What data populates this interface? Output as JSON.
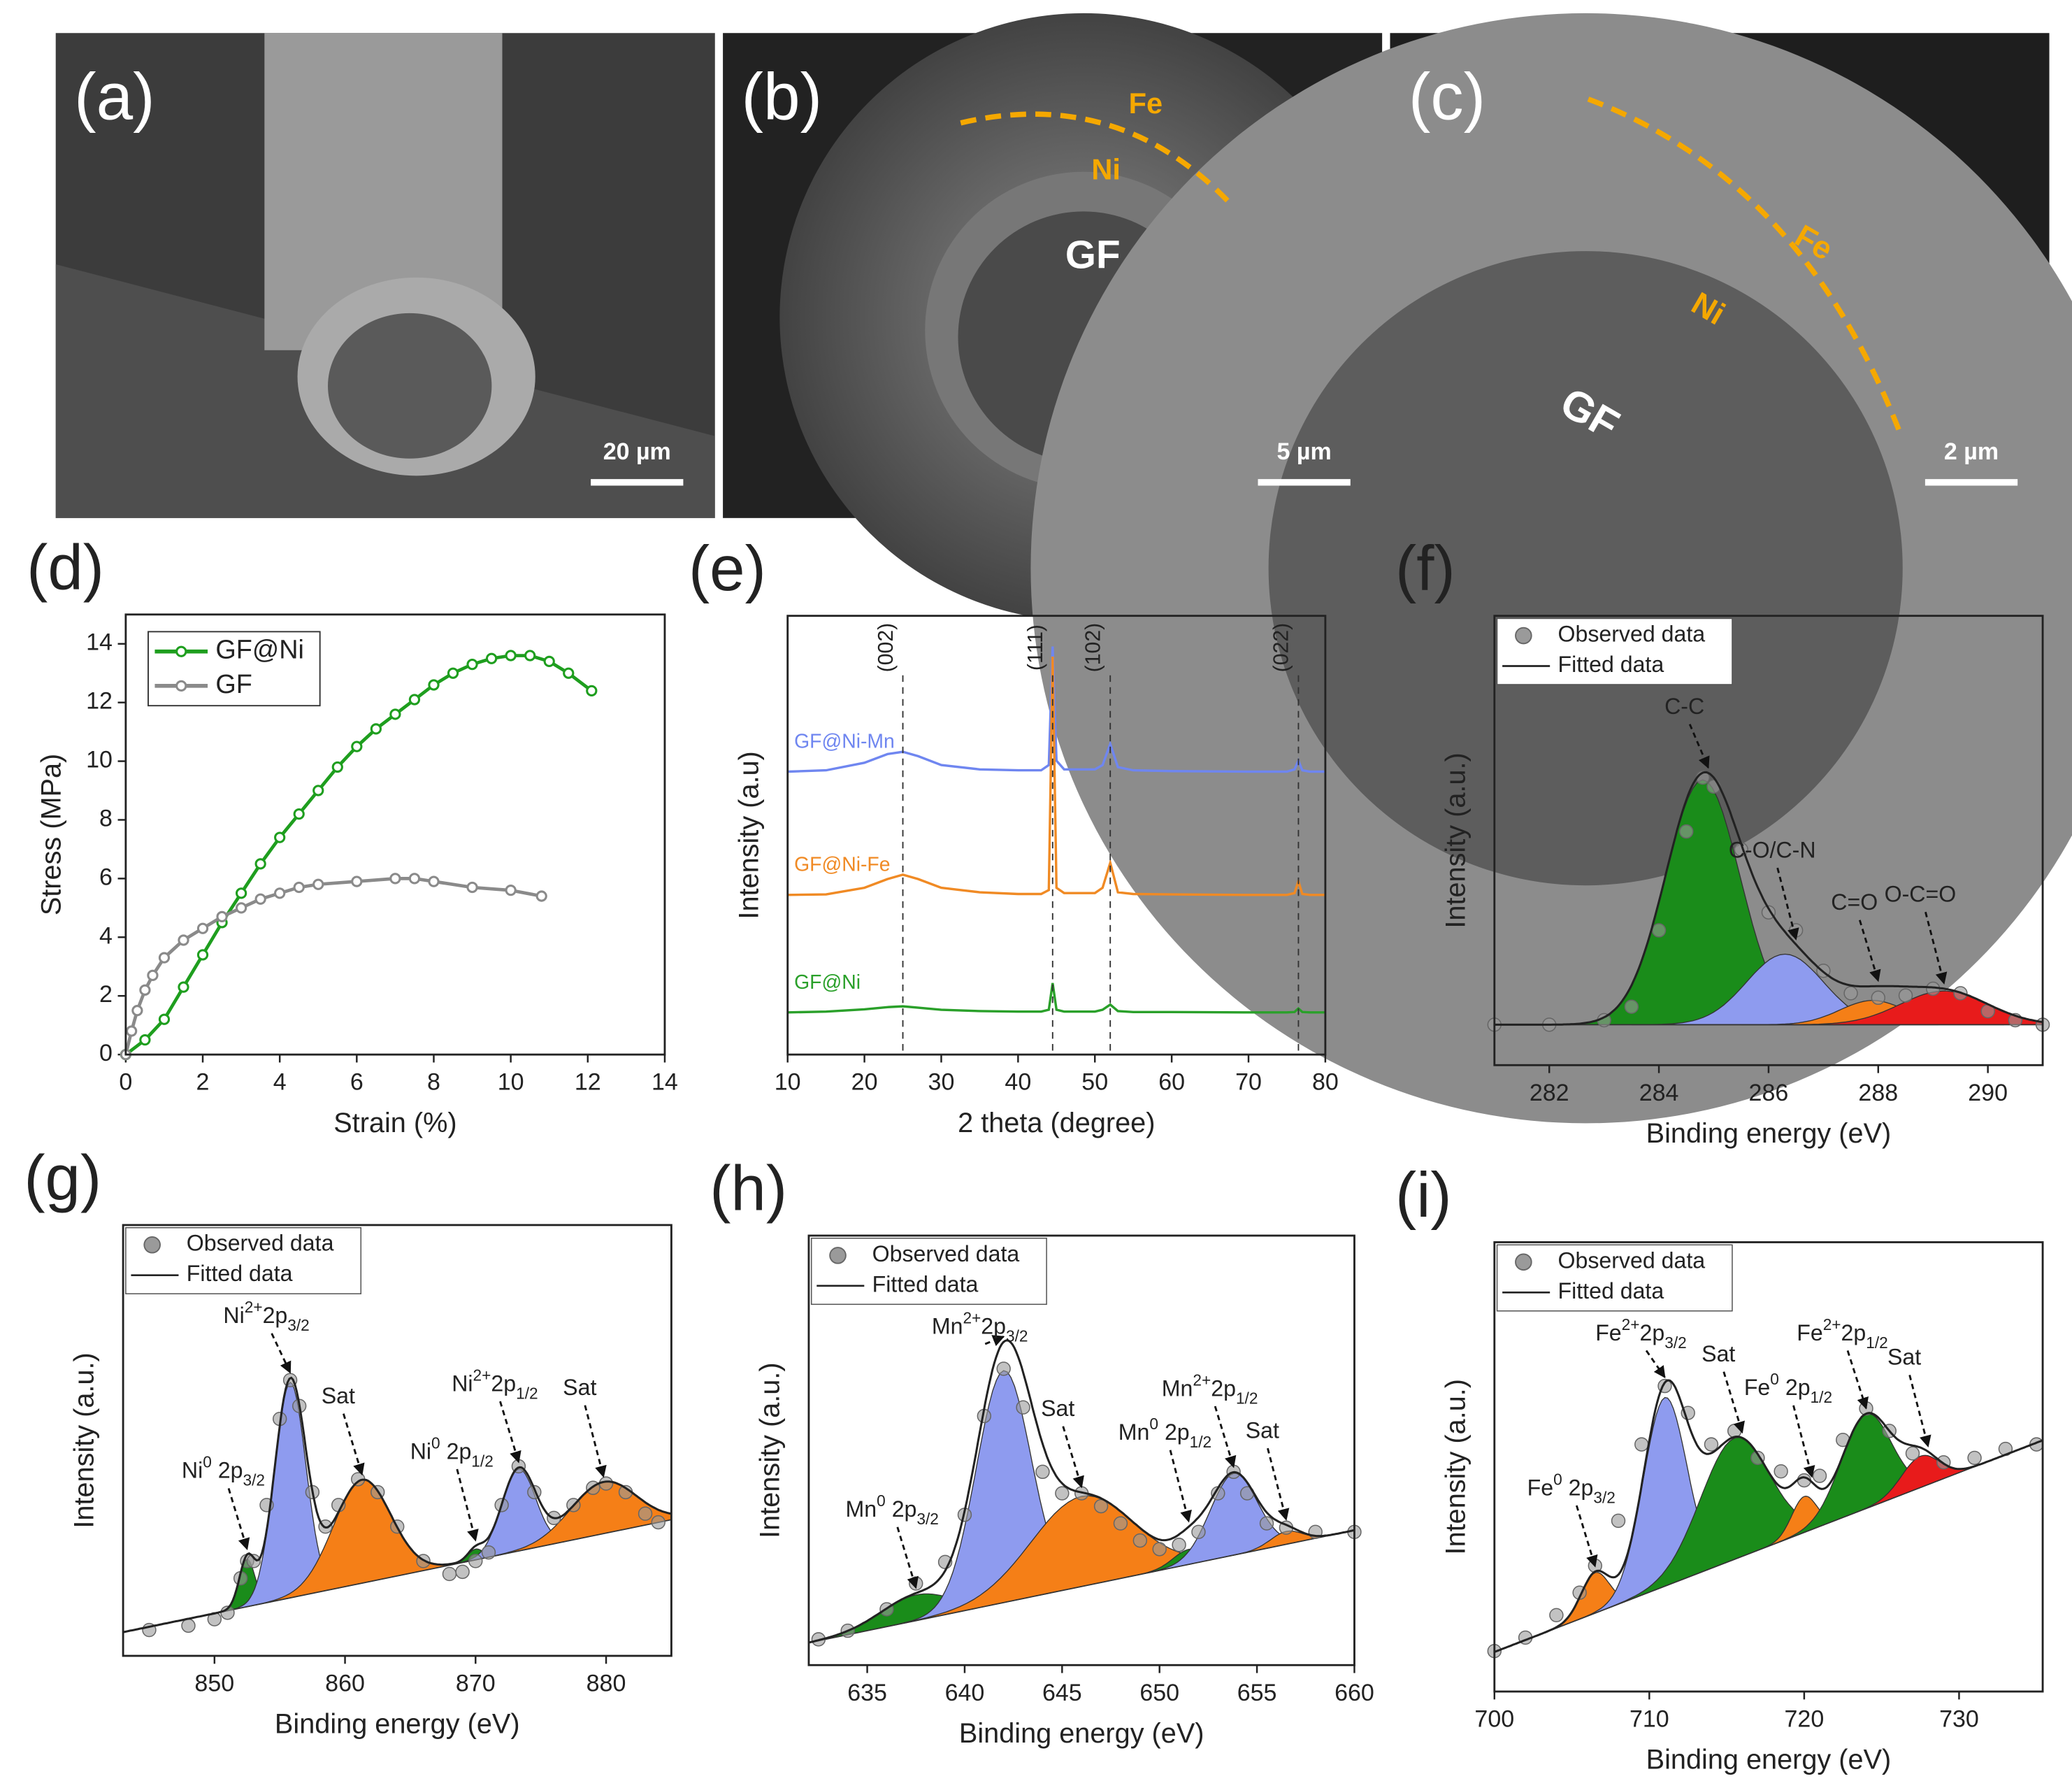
{
  "images": [
    {
      "panel": "(a)",
      "scale_bar": "20 µm"
    },
    {
      "panel": "(b)",
      "scale_bar": "5 µm",
      "labels": [
        "Fe",
        "Ni",
        "GF"
      ]
    },
    {
      "panel": "(c)",
      "scale_bar": "2 µm",
      "labels": [
        "Fe",
        "Ni",
        "GF"
      ]
    }
  ],
  "chart_data": [
    {
      "type": "line",
      "panel": "(d)",
      "xlabel": "Strain (%)",
      "ylabel": "Stress (MPa)",
      "xlim": [
        0,
        14
      ],
      "xticks": [
        0,
        2,
        4,
        6,
        8,
        10,
        12,
        14
      ],
      "ylim": [
        0,
        15
      ],
      "yticks": [
        0,
        2,
        4,
        6,
        8,
        10,
        12,
        14
      ],
      "series": [
        {
          "name": "GF@Ni",
          "color": "#1e9e1e",
          "x": [
            0,
            0.5,
            1,
            1.5,
            2,
            2.5,
            3,
            3.5,
            4,
            4.5,
            5,
            5.5,
            6,
            6.5,
            7,
            7.5,
            8,
            8.5,
            9,
            9.5,
            10,
            10.5,
            11,
            11.5,
            12.1
          ],
          "values": [
            0,
            0.5,
            1.2,
            2.3,
            3.4,
            4.5,
            5.5,
            6.5,
            7.4,
            8.2,
            9.0,
            9.8,
            10.5,
            11.1,
            11.6,
            12.1,
            12.6,
            13.0,
            13.3,
            13.5,
            13.6,
            13.6,
            13.4,
            13.0,
            12.4
          ]
        },
        {
          "name": "GF",
          "color": "#8a8a8a",
          "x": [
            0,
            0.15,
            0.3,
            0.5,
            0.7,
            1,
            1.5,
            2,
            2.5,
            3,
            3.5,
            4,
            4.5,
            5,
            6,
            7,
            7.5,
            8,
            9,
            10,
            10.8
          ],
          "values": [
            0,
            0.8,
            1.5,
            2.2,
            2.7,
            3.3,
            3.9,
            4.3,
            4.7,
            5.0,
            5.3,
            5.5,
            5.7,
            5.8,
            5.9,
            6.0,
            6.0,
            5.9,
            5.7,
            5.6,
            5.4
          ]
        }
      ]
    },
    {
      "type": "xrd",
      "panel": "(e)",
      "xlabel": "2 theta (degree)",
      "ylabel": "Intensity (a.u)",
      "xlim": [
        10,
        80
      ],
      "xticks": [
        10,
        20,
        30,
        40,
        50,
        60,
        70,
        80
      ],
      "ylim": [
        0,
        100
      ],
      "x": [
        10,
        15,
        20,
        23,
        25,
        27,
        30,
        35,
        40,
        43,
        44,
        44.5,
        45,
        46,
        50,
        51,
        52,
        53,
        55,
        60,
        70,
        75,
        76,
        76.5,
        77,
        78,
        80
      ],
      "reference_lines": [
        {
          "x": 25,
          "label": "(002)"
        },
        {
          "x": 44.5,
          "label": "(111)"
        },
        {
          "x": 52,
          "label": "(102)"
        },
        {
          "x": 76.5,
          "label": "(022)"
        }
      ],
      "series": [
        {
          "name": "GF@Ni-Mn",
          "color": "#6f86f0",
          "values": [
            64.5,
            64.8,
            66.5,
            68.5,
            69,
            68,
            66,
            65,
            64.8,
            64.8,
            66,
            93,
            67,
            65,
            65,
            66,
            70.8,
            65.5,
            64.8,
            64.6,
            64.5,
            64.5,
            65,
            67,
            64.8,
            64.5,
            64.5
          ]
        },
        {
          "name": "GF@Ni-Fe",
          "color": "#f08a24",
          "values": [
            36.4,
            36.5,
            38,
            40,
            41,
            40,
            38,
            37,
            36.6,
            36.6,
            37.5,
            90.7,
            38,
            36.8,
            36.8,
            38,
            43.7,
            37,
            36.6,
            36.5,
            36.4,
            36.4,
            36.8,
            39.5,
            36.6,
            36.4,
            36.4
          ]
        },
        {
          "name": "GF@Ni",
          "color": "#2aa02a",
          "values": [
            9.6,
            9.8,
            10.3,
            10.8,
            11,
            10.7,
            10.2,
            9.9,
            9.8,
            9.8,
            10.2,
            16.3,
            10.2,
            9.8,
            9.8,
            10.2,
            11.4,
            9.9,
            9.7,
            9.7,
            9.6,
            9.6,
            9.7,
            10.5,
            9.7,
            9.6,
            9.6
          ]
        }
      ]
    },
    {
      "type": "xps",
      "panel": "(f)",
      "xlabel": "Binding energy (eV)",
      "ylabel": "Intensity (a.u.)",
      "xlim": [
        281,
        291
      ],
      "xticks": [
        282,
        284,
        286,
        288,
        290
      ],
      "ylim": [
        0,
        100
      ],
      "x": [
        281,
        282,
        283,
        283.5,
        284,
        284.5,
        284.8,
        285,
        285.5,
        286,
        286.5,
        287,
        287.5,
        288,
        288.5,
        289,
        289.5,
        290,
        290.5,
        291
      ],
      "series": [
        {
          "name": "Observed data",
          "color": "#9a9a9a",
          "values": [
            9,
            9,
            10,
            13,
            30,
            52,
            64,
            62,
            48,
            34,
            30,
            21,
            16,
            15,
            15.5,
            17,
            16,
            12,
            10,
            9
          ]
        }
      ],
      "fit": {
        "name": "Fitted data",
        "color": "#222222"
      },
      "baseline": [
        9,
        9
      ],
      "components": [
        {
          "center": 284.8,
          "height": 54.5,
          "sigma": 0.68,
          "color": "#1a8c1a"
        },
        {
          "center": 286.3,
          "height": 15.7,
          "sigma": 0.7,
          "color": "#8e9bef"
        },
        {
          "center": 287.9,
          "height": 5.4,
          "sigma": 0.6,
          "color": "#f57f17"
        },
        {
          "center": 289.2,
          "height": 7.5,
          "sigma": 0.8,
          "color": "#e81b1b"
        }
      ],
      "annotations": [
        {
          "x": 284.9,
          "parts": [
            {
              "t": "C-C"
            }
          ]
        },
        {
          "x": 286.5,
          "parts": [
            {
              "t": "C-O/C-N"
            }
          ]
        },
        {
          "x": 288,
          "parts": [
            {
              "t": "C=O"
            }
          ]
        },
        {
          "x": 289.2,
          "parts": [
            {
              "t": "O-C=O"
            }
          ]
        }
      ]
    },
    {
      "type": "xps",
      "panel": "(g)",
      "xlabel": "Binding energy (eV)",
      "ylabel": "Intensity (a.u.)",
      "xlim": [
        843,
        885
      ],
      "xticks": [
        850,
        860,
        870,
        880
      ],
      "ylim": [
        0,
        100
      ],
      "x": [
        845,
        848,
        850,
        851,
        852,
        852.5,
        853,
        854,
        855,
        855.8,
        856.5,
        857.5,
        858.5,
        859.5,
        861,
        862.5,
        864,
        866,
        868,
        869,
        870,
        871,
        872,
        873.3,
        874.5,
        876,
        877.5,
        879,
        880,
        881.5,
        883,
        884
      ],
      "series": [
        {
          "name": "Observed data",
          "color": "#9a9a9a",
          "values": [
            6,
            7,
            8.5,
            10,
            18,
            22,
            22,
            35,
            55,
            64,
            58,
            38,
            30,
            35,
            41,
            38,
            30,
            22,
            19,
            19.5,
            22,
            24,
            35,
            44,
            38,
            32,
            35,
            39,
            40,
            38,
            33,
            31
          ]
        }
      ],
      "fit": {
        "name": "Fitted data",
        "color": "#222222"
      },
      "baseline": [
        5.5,
        31.6
      ],
      "components": [
        {
          "center": 852.5,
          "height": 11,
          "sigma": 0.6,
          "color": "#1a8c1a"
        },
        {
          "center": 855.8,
          "height": 50,
          "sigma": 1.2,
          "color": "#8e9bef"
        },
        {
          "center": 861.3,
          "height": 24,
          "sigma": 2.2,
          "color": "#f57f17"
        },
        {
          "center": 870,
          "height": 2.5,
          "sigma": 0.6,
          "color": "#1a8c1a"
        },
        {
          "center": 873.3,
          "height": 19,
          "sigma": 1.3,
          "color": "#8e9bef"
        },
        {
          "center": 879.8,
          "height": 12,
          "sigma": 2.5,
          "color": "#f57f17"
        }
      ],
      "annotations": [
        {
          "x": 852.5,
          "parts": [
            {
              "t": "Ni"
            },
            {
              "t": "0",
              "s": "sup"
            },
            {
              "t": " 2p"
            },
            {
              "t": "3/2",
              "s": "sub"
            }
          ]
        },
        {
          "x": 855.8,
          "parts": [
            {
              "t": "Ni"
            },
            {
              "t": "2+",
              "s": "sup"
            },
            {
              "t": "2p"
            },
            {
              "t": "3/2",
              "s": "sub"
            }
          ]
        },
        {
          "x": 861.3,
          "parts": [
            {
              "t": "Sat"
            }
          ]
        },
        {
          "x": 870,
          "parts": [
            {
              "t": "Ni"
            },
            {
              "t": "0",
              "s": "sup"
            },
            {
              "t": " 2p"
            },
            {
              "t": "1/2",
              "s": "sub"
            }
          ]
        },
        {
          "x": 873.3,
          "parts": [
            {
              "t": "Ni"
            },
            {
              "t": "2+",
              "s": "sup"
            },
            {
              "t": "2p"
            },
            {
              "t": "1/2",
              "s": "sub"
            }
          ]
        },
        {
          "x": 879.8,
          "parts": [
            {
              "t": "Sat"
            }
          ]
        }
      ]
    },
    {
      "type": "xps",
      "panel": "(h)",
      "xlabel": "Binding energy (eV)",
      "ylabel": "Intensity (a.u.)",
      "xlim": [
        632,
        660
      ],
      "xticks": [
        635,
        640,
        645,
        650,
        655,
        660
      ],
      "ylim": [
        0,
        100
      ],
      "x": [
        632.5,
        634,
        636,
        637.5,
        639,
        640,
        641,
        642,
        643,
        644,
        645,
        646,
        647,
        648,
        649,
        650,
        651,
        652,
        653,
        653.8,
        654.5,
        655.5,
        656.5,
        658,
        660
      ],
      "series": [
        {
          "name": "Observed data",
          "color": "#9a9a9a",
          "values": [
            6,
            8,
            13,
            19,
            24,
            35,
            58,
            69,
            60,
            45,
            40,
            40,
            37,
            33,
            29,
            27,
            28,
            31,
            40,
            45,
            40,
            33,
            32,
            31,
            31
          ]
        }
      ],
      "fit": {
        "name": "Fitted data",
        "color": "#222222"
      },
      "baseline": [
        5.2,
        31.4
      ],
      "components": [
        {
          "center": 637.5,
          "height": 6,
          "sigma": 1.8,
          "color": "#1a8c1a"
        },
        {
          "center": 642,
          "height": 54,
          "sigma": 1.4,
          "color": "#8e9bef"
        },
        {
          "center": 646,
          "height": 21,
          "sigma": 2.6,
          "color": "#f57f17"
        },
        {
          "center": 651.5,
          "height": 3.5,
          "sigma": 0.8,
          "color": "#1a8c1a"
        },
        {
          "center": 653.8,
          "height": 19,
          "sigma": 1.2,
          "color": "#8e9bef"
        },
        {
          "center": 656.5,
          "height": 3,
          "sigma": 0.8,
          "color": "#f57f17"
        }
      ],
      "annotations": [
        {
          "x": 637.5,
          "parts": [
            {
              "t": "Mn"
            },
            {
              "t": "0",
              "s": "sup"
            },
            {
              "t": " 2p"
            },
            {
              "t": "3/2",
              "s": "sub"
            }
          ]
        },
        {
          "x": 642,
          "parts": [
            {
              "t": "Mn"
            },
            {
              "t": "2+",
              "s": "sup"
            },
            {
              "t": "2p"
            },
            {
              "t": "3/2",
              "s": "sub"
            }
          ]
        },
        {
          "x": 646,
          "parts": [
            {
              "t": "Sat"
            }
          ]
        },
        {
          "x": 651.5,
          "parts": [
            {
              "t": "Mn"
            },
            {
              "t": "0",
              "s": "sup"
            },
            {
              "t": " 2p"
            },
            {
              "t": "1/2",
              "s": "sub"
            }
          ]
        },
        {
          "x": 653.8,
          "parts": [
            {
              "t": "Mn"
            },
            {
              "t": "2+",
              "s": "sup"
            },
            {
              "t": "2p"
            },
            {
              "t": "1/2",
              "s": "sub"
            }
          ]
        },
        {
          "x": 656.5,
          "parts": [
            {
              "t": "Sat"
            }
          ]
        }
      ]
    },
    {
      "type": "xps",
      "panel": "(i)",
      "xlabel": "Binding energy (eV)",
      "ylabel": "Intensity (a.u.)",
      "xlim": [
        700,
        735.4
      ],
      "xticks": [
        700,
        710,
        720,
        730
      ],
      "ylim": [
        0,
        100
      ],
      "x": [
        700,
        702,
        704,
        705.5,
        706.5,
        708,
        709.5,
        711,
        712.5,
        714,
        715.5,
        717,
        718.5,
        720,
        721,
        722.5,
        724,
        725.5,
        727,
        729,
        731,
        733,
        735
      ],
      "series": [
        {
          "name": "Observed data",
          "color": "#9a9a9a",
          "values": [
            9,
            12,
            17,
            22,
            28,
            38,
            55,
            68,
            62,
            55,
            58,
            52,
            49,
            47,
            48,
            56,
            63,
            58,
            53,
            51,
            52,
            54,
            55
          ]
        }
      ],
      "fit": {
        "name": "Fitted data",
        "color": "#222222"
      },
      "baseline": [
        8.8,
        55.9
      ],
      "components": [
        {
          "center": 706.5,
          "height": 9,
          "sigma": 0.9,
          "color": "#f57f17"
        },
        {
          "center": 711,
          "height": 42,
          "sigma": 1.4,
          "color": "#8e9bef"
        },
        {
          "center": 715.5,
          "height": 27,
          "sigma": 2.2,
          "color": "#1a8c1a"
        },
        {
          "center": 720,
          "height": 8,
          "sigma": 0.8,
          "color": "#f57f17"
        },
        {
          "center": 724,
          "height": 21,
          "sigma": 1.6,
          "color": "#1a8c1a"
        },
        {
          "center": 727.5,
          "height": 7,
          "sigma": 1.2,
          "color": "#e81b1b"
        }
      ],
      "annotations": [
        {
          "x": 706.5,
          "parts": [
            {
              "t": "Fe"
            },
            {
              "t": "0",
              "s": "sup"
            },
            {
              "t": " 2p"
            },
            {
              "t": "3/2",
              "s": "sub"
            }
          ]
        },
        {
          "x": 711,
          "parts": [
            {
              "t": "Fe"
            },
            {
              "t": "2+",
              "s": "sup"
            },
            {
              "t": "2p"
            },
            {
              "t": "3/2",
              "s": "sub"
            }
          ]
        },
        {
          "x": 716,
          "parts": [
            {
              "t": "Sat"
            }
          ]
        },
        {
          "x": 720.5,
          "parts": [
            {
              "t": "Fe"
            },
            {
              "t": "0",
              "s": "sup"
            },
            {
              "t": " 2p"
            },
            {
              "t": "1/2",
              "s": "sub"
            }
          ]
        },
        {
          "x": 724,
          "parts": [
            {
              "t": "Fe"
            },
            {
              "t": "2+",
              "s": "sup"
            },
            {
              "t": "2p"
            },
            {
              "t": "1/2",
              "s": "sub"
            }
          ]
        },
        {
          "x": 728,
          "parts": [
            {
              "t": "Sat"
            }
          ]
        }
      ]
    }
  ]
}
